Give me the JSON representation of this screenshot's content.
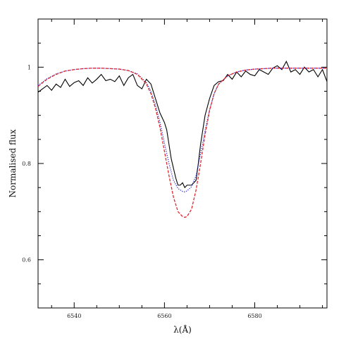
{
  "chart_data": {
    "type": "line",
    "title": "",
    "xlabel": "λ(Å)",
    "ylabel": "Normalised flux",
    "xlim": [
      6532,
      6596
    ],
    "ylim": [
      0.5,
      1.1
    ],
    "x_ticks": [
      6540,
      6560,
      6580
    ],
    "x_tick_labels": [
      "6540",
      "6560",
      "6580"
    ],
    "y_ticks": [
      0.6,
      0.8,
      1.0
    ],
    "y_tick_labels": [
      "0.6",
      "0.8",
      "1"
    ],
    "grid": false,
    "legend": "none",
    "series": [
      {
        "style": "solid",
        "color": "#000000",
        "x": [
          6532,
          6533,
          6534,
          6535,
          6536,
          6537,
          6538,
          6539,
          6540,
          6541,
          6542,
          6543,
          6544,
          6545,
          6546,
          6547,
          6548,
          6549,
          6550,
          6551,
          6552,
          6553,
          6554,
          6555,
          6556,
          6557,
          6558,
          6559,
          6560,
          6560.5,
          6561,
          6561.5,
          6562,
          6562.5,
          6563,
          6563.5,
          6564,
          6564.5,
          6565,
          6565.5,
          6566,
          6566.5,
          6567,
          6567.5,
          6568,
          6568.5,
          6569,
          6570,
          6571,
          6572,
          6573,
          6574,
          6575,
          6576,
          6577,
          6578,
          6579,
          6580,
          6581,
          6582,
          6583,
          6584,
          6585,
          6586,
          6587,
          6588,
          6589,
          6590,
          6591,
          6592,
          6593,
          6594,
          6595,
          6596
        ],
        "y": [
          0.948,
          0.955,
          0.962,
          0.952,
          0.965,
          0.958,
          0.975,
          0.96,
          0.968,
          0.972,
          0.962,
          0.978,
          0.967,
          0.975,
          0.985,
          0.972,
          0.975,
          0.97,
          0.982,
          0.962,
          0.978,
          0.985,
          0.962,
          0.955,
          0.975,
          0.965,
          0.935,
          0.905,
          0.885,
          0.87,
          0.84,
          0.81,
          0.79,
          0.77,
          0.755,
          0.755,
          0.76,
          0.75,
          0.755,
          0.755,
          0.755,
          0.76,
          0.765,
          0.8,
          0.84,
          0.87,
          0.9,
          0.935,
          0.962,
          0.97,
          0.972,
          0.985,
          0.975,
          0.99,
          0.98,
          0.992,
          0.985,
          0.982,
          0.995,
          0.99,
          0.985,
          0.998,
          1.003,
          0.995,
          1.012,
          0.99,
          0.995,
          0.985,
          1.0,
          0.99,
          0.995,
          0.98,
          0.995,
          0.97
        ]
      },
      {
        "style": "dashed",
        "color": "#e0282e",
        "x": [
          6532,
          6534,
          6536,
          6538,
          6540,
          6542,
          6544,
          6546,
          6548,
          6550,
          6552,
          6554,
          6556,
          6557,
          6558,
          6559,
          6560,
          6561,
          6562,
          6563,
          6564,
          6564.5,
          6565,
          6566,
          6567,
          6568,
          6569,
          6570,
          6571,
          6572,
          6574,
          6576,
          6578,
          6580,
          6582,
          6584,
          6586,
          6588,
          6590,
          6592,
          6594,
          6596
        ],
        "y": [
          0.96,
          0.975,
          0.985,
          0.992,
          0.995,
          0.997,
          0.998,
          0.998,
          0.997,
          0.996,
          0.993,
          0.985,
          0.965,
          0.945,
          0.915,
          0.875,
          0.825,
          0.775,
          0.73,
          0.7,
          0.69,
          0.688,
          0.69,
          0.705,
          0.745,
          0.8,
          0.86,
          0.91,
          0.945,
          0.965,
          0.982,
          0.99,
          0.994,
          0.996,
          0.997,
          0.998,
          0.998,
          0.998,
          0.998,
          0.998,
          0.998,
          0.998
        ]
      },
      {
        "style": "dotted",
        "color": "#2a2ad0",
        "x": [
          6532,
          6534,
          6536,
          6538,
          6540,
          6542,
          6544,
          6546,
          6548,
          6550,
          6552,
          6554,
          6556,
          6557,
          6558,
          6559,
          6560,
          6561,
          6562,
          6563,
          6564,
          6564.5,
          6565,
          6566,
          6567,
          6568,
          6569,
          6570,
          6571,
          6572,
          6574,
          6576,
          6578,
          6580,
          6582,
          6584,
          6586,
          6588,
          6590,
          6592,
          6594,
          6596
        ],
        "y": [
          0.962,
          0.976,
          0.986,
          0.992,
          0.995,
          0.997,
          0.998,
          0.998,
          0.997,
          0.996,
          0.993,
          0.986,
          0.968,
          0.95,
          0.922,
          0.886,
          0.842,
          0.8,
          0.765,
          0.748,
          0.742,
          0.741,
          0.743,
          0.752,
          0.775,
          0.82,
          0.868,
          0.912,
          0.945,
          0.965,
          0.982,
          0.99,
          0.994,
          0.996,
          0.997,
          0.998,
          0.998,
          0.998,
          0.998,
          0.998,
          0.998,
          0.998
        ]
      }
    ]
  }
}
